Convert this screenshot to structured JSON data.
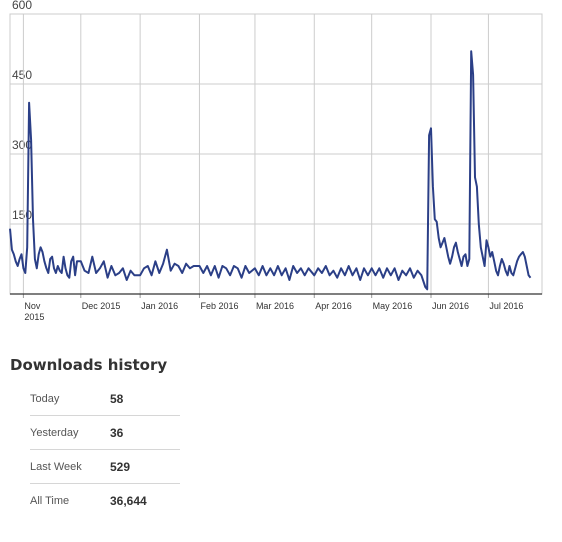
{
  "chart_data": {
    "type": "line",
    "title": "",
    "xlabel": "",
    "ylabel": "",
    "ylim": [
      0,
      600
    ],
    "yticks": [
      150,
      300,
      450,
      600
    ],
    "grid": true,
    "color": "#2b3f87",
    "x_date_range": [
      "2015-10-25",
      "2016-07-29"
    ],
    "x_ticks": [
      {
        "date": "2015-11-01",
        "label": "Nov",
        "label2": "2015"
      },
      {
        "date": "2015-12-01",
        "label": "Dec 2015"
      },
      {
        "date": "2016-01-01",
        "label": "Jan 2016"
      },
      {
        "date": "2016-02-01",
        "label": "Feb 2016"
      },
      {
        "date": "2016-03-01",
        "label": "Mar 2016"
      },
      {
        "date": "2016-04-01",
        "label": "Apr 2016"
      },
      {
        "date": "2016-05-01",
        "label": "May 2016"
      },
      {
        "date": "2016-06-01",
        "label": "Jun 2016"
      },
      {
        "date": "2016-07-01",
        "label": "Jul 2016"
      }
    ],
    "series": [
      {
        "points": [
          [
            "2015-10-25",
            140
          ],
          [
            "2015-10-26",
            95
          ],
          [
            "2015-10-27",
            85
          ],
          [
            "2015-10-28",
            70
          ],
          [
            "2015-10-29",
            60
          ],
          [
            "2015-10-30",
            75
          ],
          [
            "2015-10-31",
            85
          ],
          [
            "2015-11-01",
            55
          ],
          [
            "2015-11-02",
            45
          ],
          [
            "2015-11-03",
            100
          ],
          [
            "2015-11-04",
            410
          ],
          [
            "2015-11-05",
            330
          ],
          [
            "2015-11-06",
            160
          ],
          [
            "2015-11-07",
            75
          ],
          [
            "2015-11-08",
            55
          ],
          [
            "2015-11-09",
            85
          ],
          [
            "2015-11-10",
            100
          ],
          [
            "2015-11-11",
            90
          ],
          [
            "2015-11-12",
            70
          ],
          [
            "2015-11-13",
            55
          ],
          [
            "2015-11-14",
            45
          ],
          [
            "2015-11-15",
            75
          ],
          [
            "2015-11-16",
            80
          ],
          [
            "2015-11-17",
            55
          ],
          [
            "2015-11-18",
            45
          ],
          [
            "2015-11-19",
            60
          ],
          [
            "2015-11-20",
            50
          ],
          [
            "2015-11-21",
            45
          ],
          [
            "2015-11-22",
            80
          ],
          [
            "2015-11-23",
            55
          ],
          [
            "2015-11-24",
            40
          ],
          [
            "2015-11-25",
            35
          ],
          [
            "2015-11-26",
            70
          ],
          [
            "2015-11-27",
            80
          ],
          [
            "2015-11-28",
            40
          ],
          [
            "2015-11-29",
            70
          ],
          [
            "2015-12-01",
            70
          ],
          [
            "2015-12-03",
            50
          ],
          [
            "2015-12-05",
            45
          ],
          [
            "2015-12-07",
            80
          ],
          [
            "2015-12-09",
            45
          ],
          [
            "2015-12-11",
            55
          ],
          [
            "2015-12-13",
            70
          ],
          [
            "2015-12-15",
            35
          ],
          [
            "2015-12-17",
            60
          ],
          [
            "2015-12-19",
            40
          ],
          [
            "2015-12-21",
            45
          ],
          [
            "2015-12-23",
            55
          ],
          [
            "2015-12-25",
            30
          ],
          [
            "2015-12-27",
            50
          ],
          [
            "2015-12-29",
            40
          ],
          [
            "2016-01-01",
            40
          ],
          [
            "2016-01-03",
            55
          ],
          [
            "2016-01-05",
            60
          ],
          [
            "2016-01-07",
            40
          ],
          [
            "2016-01-09",
            70
          ],
          [
            "2016-01-11",
            45
          ],
          [
            "2016-01-13",
            65
          ],
          [
            "2016-01-15",
            95
          ],
          [
            "2016-01-17",
            50
          ],
          [
            "2016-01-19",
            65
          ],
          [
            "2016-01-21",
            60
          ],
          [
            "2016-01-23",
            45
          ],
          [
            "2016-01-25",
            65
          ],
          [
            "2016-01-27",
            55
          ],
          [
            "2016-01-29",
            60
          ],
          [
            "2016-02-01",
            60
          ],
          [
            "2016-02-03",
            45
          ],
          [
            "2016-02-05",
            60
          ],
          [
            "2016-02-07",
            40
          ],
          [
            "2016-02-09",
            60
          ],
          [
            "2016-02-11",
            35
          ],
          [
            "2016-02-13",
            60
          ],
          [
            "2016-02-15",
            55
          ],
          [
            "2016-02-17",
            40
          ],
          [
            "2016-02-19",
            60
          ],
          [
            "2016-02-21",
            55
          ],
          [
            "2016-02-23",
            35
          ],
          [
            "2016-02-25",
            60
          ],
          [
            "2016-02-27",
            45
          ],
          [
            "2016-03-01",
            55
          ],
          [
            "2016-03-03",
            40
          ],
          [
            "2016-03-05",
            60
          ],
          [
            "2016-03-07",
            40
          ],
          [
            "2016-03-09",
            55
          ],
          [
            "2016-03-11",
            40
          ],
          [
            "2016-03-13",
            60
          ],
          [
            "2016-03-15",
            40
          ],
          [
            "2016-03-17",
            55
          ],
          [
            "2016-03-19",
            30
          ],
          [
            "2016-03-21",
            60
          ],
          [
            "2016-03-23",
            45
          ],
          [
            "2016-03-25",
            55
          ],
          [
            "2016-03-27",
            40
          ],
          [
            "2016-03-29",
            55
          ],
          [
            "2016-04-01",
            40
          ],
          [
            "2016-04-03",
            55
          ],
          [
            "2016-04-05",
            45
          ],
          [
            "2016-04-07",
            60
          ],
          [
            "2016-04-09",
            40
          ],
          [
            "2016-04-11",
            50
          ],
          [
            "2016-04-13",
            35
          ],
          [
            "2016-04-15",
            55
          ],
          [
            "2016-04-17",
            40
          ],
          [
            "2016-04-19",
            60
          ],
          [
            "2016-04-21",
            40
          ],
          [
            "2016-04-23",
            55
          ],
          [
            "2016-04-25",
            30
          ],
          [
            "2016-04-27",
            55
          ],
          [
            "2016-04-29",
            40
          ],
          [
            "2016-05-01",
            55
          ],
          [
            "2016-05-03",
            40
          ],
          [
            "2016-05-05",
            55
          ],
          [
            "2016-05-07",
            35
          ],
          [
            "2016-05-09",
            55
          ],
          [
            "2016-05-11",
            40
          ],
          [
            "2016-05-13",
            55
          ],
          [
            "2016-05-15",
            30
          ],
          [
            "2016-05-17",
            50
          ],
          [
            "2016-05-19",
            40
          ],
          [
            "2016-05-21",
            55
          ],
          [
            "2016-05-23",
            35
          ],
          [
            "2016-05-25",
            50
          ],
          [
            "2016-05-27",
            40
          ],
          [
            "2016-05-29",
            15
          ],
          [
            "2016-05-30",
            10
          ],
          [
            "2016-05-31",
            340
          ],
          [
            "2016-06-01",
            355
          ],
          [
            "2016-06-02",
            230
          ],
          [
            "2016-06-03",
            160
          ],
          [
            "2016-06-04",
            155
          ],
          [
            "2016-06-05",
            120
          ],
          [
            "2016-06-06",
            100
          ],
          [
            "2016-06-07",
            110
          ],
          [
            "2016-06-08",
            120
          ],
          [
            "2016-06-09",
            100
          ],
          [
            "2016-06-10",
            80
          ],
          [
            "2016-06-11",
            65
          ],
          [
            "2016-06-12",
            80
          ],
          [
            "2016-06-13",
            100
          ],
          [
            "2016-06-14",
            110
          ],
          [
            "2016-06-15",
            90
          ],
          [
            "2016-06-16",
            75
          ],
          [
            "2016-06-17",
            60
          ],
          [
            "2016-06-18",
            80
          ],
          [
            "2016-06-19",
            85
          ],
          [
            "2016-06-20",
            60
          ],
          [
            "2016-06-21",
            75
          ],
          [
            "2016-06-22",
            520
          ],
          [
            "2016-06-23",
            470
          ],
          [
            "2016-06-24",
            250
          ],
          [
            "2016-06-25",
            230
          ],
          [
            "2016-06-26",
            150
          ],
          [
            "2016-06-27",
            100
          ],
          [
            "2016-06-28",
            80
          ],
          [
            "2016-06-29",
            60
          ],
          [
            "2016-06-30",
            115
          ],
          [
            "2016-07-01",
            100
          ],
          [
            "2016-07-02",
            80
          ],
          [
            "2016-07-03",
            90
          ],
          [
            "2016-07-04",
            70
          ],
          [
            "2016-07-05",
            50
          ],
          [
            "2016-07-06",
            40
          ],
          [
            "2016-07-07",
            60
          ],
          [
            "2016-07-08",
            75
          ],
          [
            "2016-07-09",
            65
          ],
          [
            "2016-07-10",
            50
          ],
          [
            "2016-07-11",
            40
          ],
          [
            "2016-07-12",
            60
          ],
          [
            "2016-07-13",
            45
          ],
          [
            "2016-07-14",
            40
          ],
          [
            "2016-07-15",
            55
          ],
          [
            "2016-07-16",
            70
          ],
          [
            "2016-07-17",
            80
          ],
          [
            "2016-07-18",
            85
          ],
          [
            "2016-07-19",
            90
          ],
          [
            "2016-07-20",
            80
          ],
          [
            "2016-07-21",
            60
          ],
          [
            "2016-07-22",
            40
          ],
          [
            "2016-07-23",
            35
          ]
        ]
      }
    ]
  },
  "history": {
    "title": "Downloads history",
    "rows": [
      {
        "label": "Today",
        "value": "58"
      },
      {
        "label": "Yesterday",
        "value": "36"
      },
      {
        "label": "Last Week",
        "value": "529"
      },
      {
        "label": "All Time",
        "value": "36,644"
      }
    ]
  }
}
